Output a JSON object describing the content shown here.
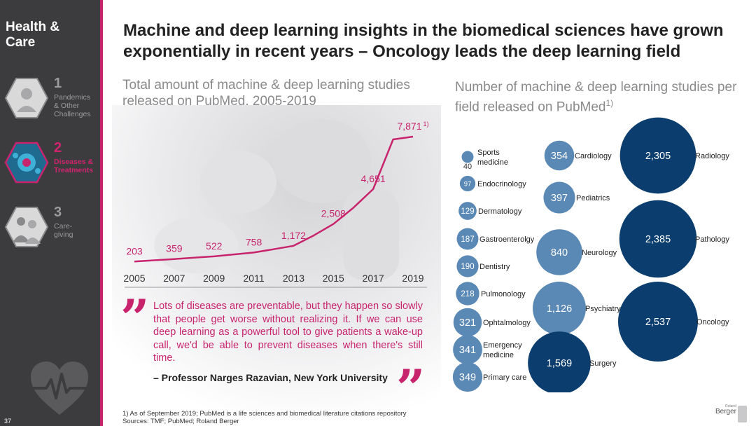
{
  "sidebar": {
    "title": "Health &\nCare",
    "page_number": "37",
    "items": [
      {
        "num": "1",
        "label": "Pandemics\n& Other\nChallenges",
        "active": false
      },
      {
        "num": "2",
        "label": "Diseases &\nTreatments",
        "active": true
      },
      {
        "num": "3",
        "label": "Care-\ngiving",
        "active": false
      }
    ],
    "icon": "heartbeat-icon"
  },
  "title": "Machine and deep learning insights in the biomedical sciences have grown exponentially in recent years – Oncology leads the deep learning field",
  "left_subtitle": "Total amount of machine & deep learning studies\nreleased on PubMed, 2005-2019",
  "right_subtitle": "Number of machine & deep learning studies per field released on PubMed",
  "right_subtitle_sup": "1)",
  "quote": {
    "text": "Lots of diseases are preventable, but they happen so slowly that people get worse without realizing it. If we can use deep learning as a powerful tool to give patients a wake-up call, we'd be able to prevent diseases when there's still time.",
    "author": "– Professor Narges Razavian, New York University",
    "open_mark": "”",
    "close_mark": "”"
  },
  "footnote_1": "1) As of September 2019; PubMed is a life sciences and biomedical literature citations repository",
  "footnote_2": "Sources: TMF; PubMed; Roland Berger",
  "logo": {
    "text": "Berger",
    "small": "Roland"
  },
  "colors": {
    "accent": "#c8246e",
    "sidebar": "#3c3c3e",
    "bubble_light": "#5b89b5",
    "bubble_dark": "#0b3e6e"
  },
  "chart_data": [
    {
      "type": "line",
      "x": [
        2005,
        2006,
        2007,
        2008,
        2009,
        2010,
        2011,
        2012,
        2013,
        2014,
        2015,
        2016,
        2017,
        2018,
        2019
      ],
      "values": [
        203,
        280,
        359,
        440,
        522,
        640,
        758,
        960,
        1172,
        1800,
        2508,
        3500,
        4651,
        7700,
        7871
      ],
      "labeled_points": [
        {
          "x": 2005,
          "label": "203"
        },
        {
          "x": 2007,
          "label": "359"
        },
        {
          "x": 2009,
          "label": "522"
        },
        {
          "x": 2011,
          "label": "758"
        },
        {
          "x": 2013,
          "label": "1,172"
        },
        {
          "x": 2015,
          "label": "2,508"
        },
        {
          "x": 2017,
          "label": "4,651"
        },
        {
          "x": 2019,
          "label": "7,871",
          "sup": "1)"
        }
      ],
      "tick_labels": [
        "2005",
        "2007",
        "2009",
        "2011",
        "2013",
        "2015",
        "2017",
        "2019"
      ],
      "ylim": [
        0,
        8000
      ],
      "color": "#c8246e"
    },
    {
      "type": "bubble",
      "items": [
        {
          "field": "Sports\nmedicine",
          "value": 40,
          "label": "40",
          "color": "light"
        },
        {
          "field": "Endocrinology",
          "value": 97,
          "label": "97",
          "color": "light"
        },
        {
          "field": "Dermatology",
          "value": 129,
          "label": "129",
          "color": "light"
        },
        {
          "field": "Gastroenterolgy",
          "value": 187,
          "label": "187",
          "color": "light"
        },
        {
          "field": "Dentistry",
          "value": 190,
          "label": "190",
          "color": "light"
        },
        {
          "field": "Pulmonology",
          "value": 218,
          "label": "218",
          "color": "light"
        },
        {
          "field": "Ophtalmology",
          "value": 321,
          "label": "321",
          "color": "light"
        },
        {
          "field": "Emergency\nmedicine",
          "value": 341,
          "label": "341",
          "color": "light"
        },
        {
          "field": "Primary care",
          "value": 349,
          "label": "349",
          "color": "light"
        },
        {
          "field": "Cardiology",
          "value": 354,
          "label": "354",
          "color": "light"
        },
        {
          "field": "Pediatrics",
          "value": 397,
          "label": "397",
          "color": "light"
        },
        {
          "field": "Neurology",
          "value": 840,
          "label": "840",
          "color": "light"
        },
        {
          "field": "Psychiatry",
          "value": 1126,
          "label": "1,126",
          "color": "light"
        },
        {
          "field": "Surgery",
          "value": 1569,
          "label": "1,569",
          "color": "dark"
        },
        {
          "field": "Radiology",
          "value": 2305,
          "label": "2,305",
          "color": "dark"
        },
        {
          "field": "Pathology",
          "value": 2385,
          "label": "2,385",
          "color": "dark"
        },
        {
          "field": "Oncology",
          "value": 2537,
          "label": "2,537",
          "color": "dark"
        }
      ]
    }
  ]
}
